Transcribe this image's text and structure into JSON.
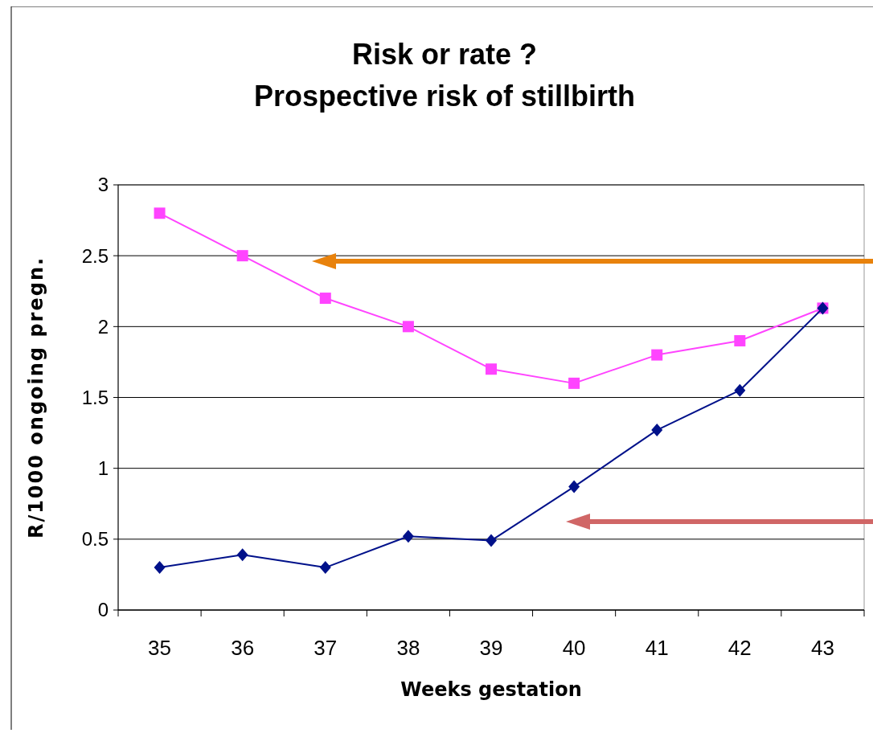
{
  "chart_data": {
    "type": "line",
    "title": "Risk or rate ?\nProspective risk of stillbirth",
    "xlabel": "Weeks gestation",
    "ylabel": "R/1000 ongoing pregn.",
    "categories": [
      "35",
      "36",
      "37",
      "38",
      "39",
      "40",
      "41",
      "42",
      "43"
    ],
    "series": [
      {
        "color": "#ff44ff",
        "marker": "square",
        "values": [
          2.8,
          2.5,
          2.2,
          2.0,
          1.7,
          1.6,
          1.8,
          1.9,
          2.13
        ]
      },
      {
        "color": "#00118a",
        "marker": "diamond",
        "values": [
          0.3,
          0.39,
          0.3,
          0.52,
          0.49,
          0.87,
          1.27,
          1.55,
          2.13
        ]
      }
    ],
    "ylim": [
      0,
      3
    ],
    "yticks": [
      0,
      0.5,
      1,
      1.5,
      2,
      2.5,
      3
    ],
    "grid": "y",
    "line_style": "solid"
  }
}
